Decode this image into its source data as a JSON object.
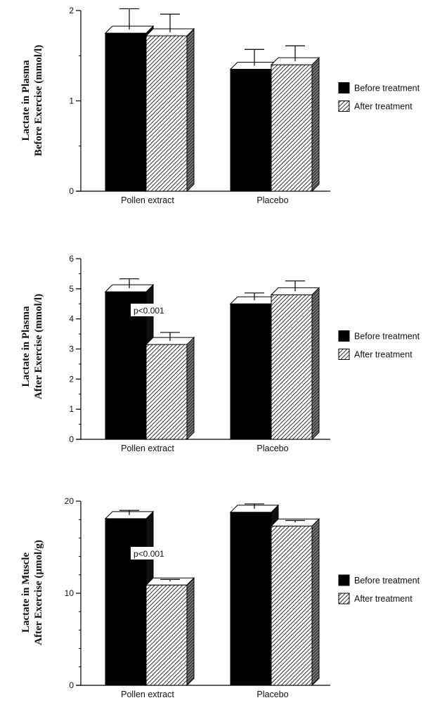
{
  "chart_data": [
    {
      "type": "bar",
      "ylabel": [
        "Lactate in Plasma",
        "Before Exercise (mmol/l)"
      ],
      "categories": [
        "Pollen  extract",
        "Placebo"
      ],
      "ylim": [
        0,
        2
      ],
      "yticks": [
        0,
        1,
        2
      ],
      "minor_step": 0.5,
      "series": [
        {
          "name": "Before treatment",
          "values": [
            1.75,
            1.35
          ],
          "errors": [
            0.27,
            0.22
          ]
        },
        {
          "name": "After treatment",
          "values": [
            1.72,
            1.4
          ],
          "errors": [
            0.24,
            0.21
          ]
        }
      ],
      "annotation": null,
      "legend_position": "right"
    },
    {
      "type": "bar",
      "ylabel": [
        "Lactate in Plasma",
        "After Exercise (mmol/l)"
      ],
      "categories": [
        "Pollen  extract",
        "Placebo"
      ],
      "ylim": [
        0,
        6
      ],
      "yticks": [
        0,
        1,
        2,
        3,
        4,
        5,
        6
      ],
      "minor_step": 0.5,
      "series": [
        {
          "name": "Before treatment",
          "values": [
            4.9,
            4.5
          ],
          "errors": [
            0.43,
            0.36
          ]
        },
        {
          "name": "After treatment",
          "values": [
            3.15,
            4.8
          ],
          "errors": [
            0.4,
            0.46
          ]
        }
      ],
      "annotation": "p<0.001",
      "legend_position": "right"
    },
    {
      "type": "bar",
      "ylabel": [
        "Lactate in Muscle",
        "After Exercise (µmol/g)"
      ],
      "categories": [
        "Pollen  extract",
        "Placebo"
      ],
      "ylim": [
        0,
        20
      ],
      "yticks": [
        0,
        10,
        20
      ],
      "minor_step": 2,
      "series": [
        {
          "name": "Before treatment",
          "values": [
            18.1,
            18.8
          ],
          "errors": [
            0.9,
            0.9
          ]
        },
        {
          "name": "After treatment",
          "values": [
            10.9,
            17.3
          ],
          "errors": [
            0.6,
            0.6
          ]
        }
      ],
      "annotation": "p<0.001",
      "legend_position": "right"
    }
  ],
  "colors": {
    "before": "#000000",
    "after_hatch": "#000000",
    "background": "#ffffff"
  }
}
